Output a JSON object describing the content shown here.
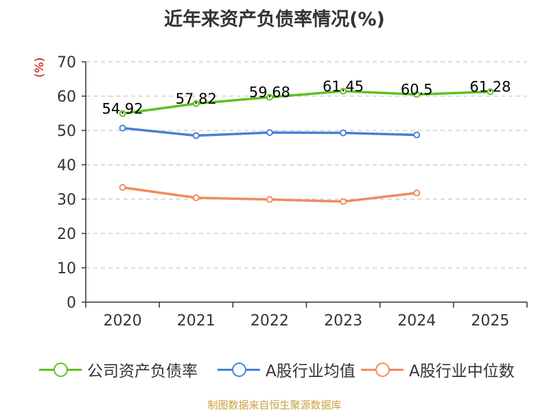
{
  "chart_data": {
    "type": "line",
    "title": "近年来资产负债率情况(%)",
    "ylabel": "(%)",
    "xlabel": "",
    "categories": [
      "2020",
      "2021",
      "2022",
      "2023",
      "2024",
      "2025"
    ],
    "ylim": [
      0,
      70
    ],
    "yticks": [
      0,
      10,
      20,
      30,
      40,
      50,
      60,
      70
    ],
    "grid": true,
    "legend_position": "bottom",
    "series": [
      {
        "name": "公司资产负债率",
        "color": "#5ac224",
        "values": [
          54.92,
          57.82,
          59.68,
          61.45,
          60.5,
          61.28
        ],
        "labels": [
          "54.92",
          "57.82",
          "59.68",
          "61.45",
          "60.5",
          "61.28"
        ]
      },
      {
        "name": "A股行业均值",
        "color": "#4a7fd6",
        "values": [
          50.7,
          48.5,
          49.4,
          49.3,
          48.7,
          null
        ]
      },
      {
        "name": "A股行业中位数",
        "color": "#f28b5a",
        "values": [
          33.4,
          30.4,
          29.9,
          29.3,
          31.8,
          null
        ]
      }
    ]
  },
  "source": "制图数据来自恒生聚源数据库"
}
